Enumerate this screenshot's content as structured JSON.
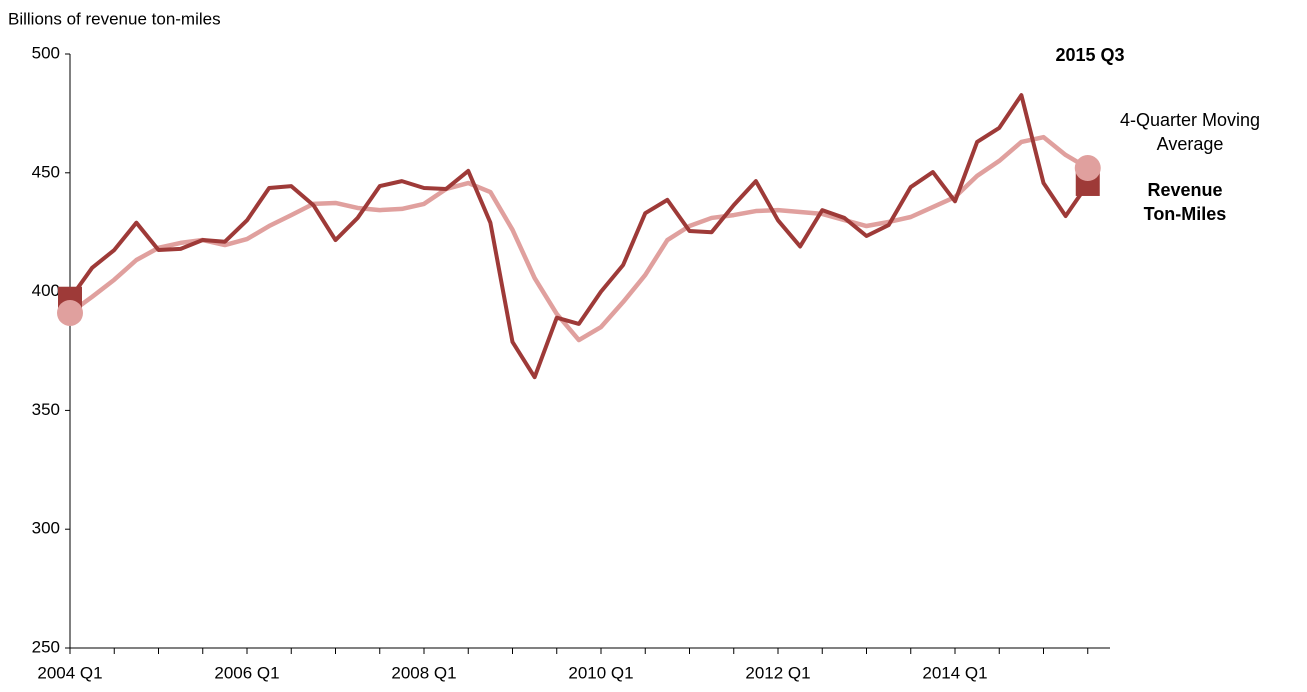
{
  "chart_data": {
    "type": "line",
    "ylabel": "Billions of revenue ton-miles",
    "annotation": "2015 Q3",
    "categories": [
      "2004 Q1",
      null,
      null,
      null,
      null,
      null,
      null,
      null,
      "2006 Q1",
      null,
      null,
      null,
      null,
      null,
      null,
      null,
      "2008 Q1",
      null,
      null,
      null,
      null,
      null,
      null,
      null,
      "2010 Q1",
      null,
      null,
      null,
      null,
      null,
      null,
      null,
      "2012 Q1",
      null,
      null,
      null,
      null,
      null,
      null,
      null,
      "2014 Q1",
      null,
      null,
      null,
      null,
      null,
      null
    ],
    "series": [
      {
        "name": "Revenue Ton-Miles",
        "color": "#9e3a38",
        "values": [
          397,
          410,
          417.5,
          429,
          417.5,
          418,
          421.7,
          421,
          430,
          443.6,
          444.4,
          436.4,
          421.7,
          431,
          444.4,
          446.5,
          443.6,
          443.2,
          450.8,
          429,
          378.8,
          364,
          389,
          386.4,
          400,
          411.2,
          433,
          438.6,
          425.5,
          425,
          436.4,
          446.5,
          430,
          419,
          434.3,
          431,
          423.4,
          428,
          444,
          450.3,
          438,
          463,
          468.9,
          482.7,
          445.7,
          431.8,
          445.3
        ]
      },
      {
        "name": "4-Quarter Moving Average",
        "color": "#e0a09e",
        "values": [
          391,
          397.8,
          405,
          413.3,
          418.4,
          420.5,
          421.7,
          419.6,
          422.1,
          427.6,
          432.2,
          436.9,
          437.3,
          435.2,
          434.3,
          434.8,
          436.9,
          443.2,
          445.7,
          441.9,
          426,
          405.7,
          390.6,
          379.6,
          385.1,
          395.6,
          407,
          421.7,
          427.6,
          431,
          432.2,
          433.9,
          434.3,
          433.5,
          432.7,
          430.1,
          427.6,
          429.3,
          431.4,
          435.6,
          439.8,
          448.7,
          455,
          463,
          465,
          457.5,
          452
        ]
      }
    ],
    "ylim": [
      250,
      500
    ],
    "yticks": [
      250,
      300,
      350,
      400,
      450,
      500
    ],
    "grid": false
  }
}
